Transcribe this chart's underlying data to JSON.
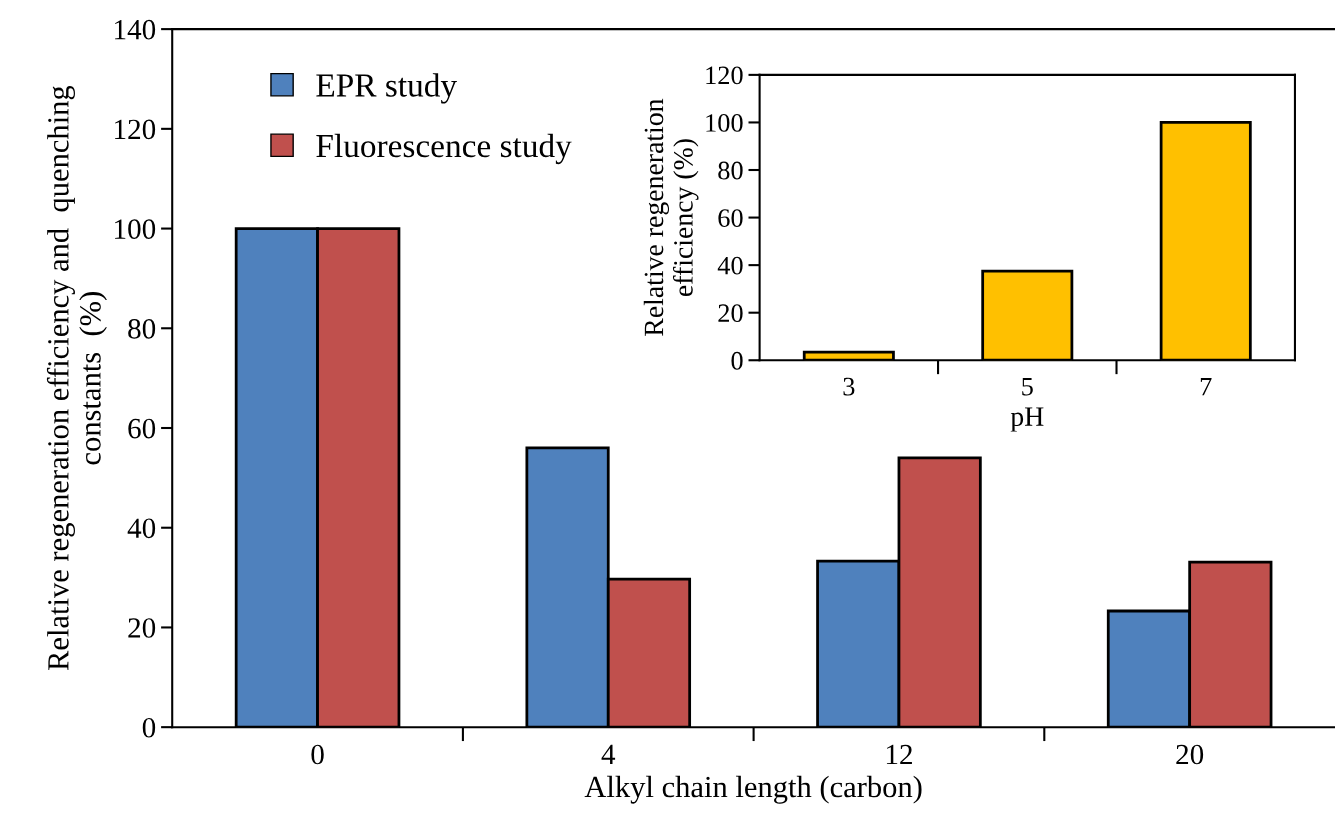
{
  "chart_data": [
    {
      "type": "bar",
      "xlabel": "Alkyl chain length (carbon)",
      "ylabel": "Relative regeneration efficiency and  quenching\nconstants  (%)",
      "categories": [
        "0",
        "4",
        "12",
        "20"
      ],
      "ylim": [
        0,
        140
      ],
      "yticks": [
        0,
        20,
        40,
        60,
        80,
        100,
        120,
        140
      ],
      "legend": "top left",
      "grid": false,
      "series": [
        {
          "name": "EPR study",
          "color": "#4f81bd",
          "values": [
            100,
            56,
            33.3,
            23.3
          ]
        },
        {
          "name": "Fluorescence study",
          "color": "#c0504d",
          "values": [
            100,
            29.7,
            54,
            33.1
          ]
        }
      ]
    },
    {
      "type": "bar",
      "xlabel": "pH",
      "ylabel": "Relative regeneration\nefficiency (%)",
      "categories": [
        "3",
        "5",
        "7"
      ],
      "ylim": [
        0,
        120
      ],
      "yticks": [
        0,
        20,
        40,
        60,
        80,
        100,
        120
      ],
      "grid": false,
      "series": [
        {
          "color": "#ffc000",
          "values": [
            3.4,
            37.5,
            100
          ]
        }
      ]
    }
  ]
}
